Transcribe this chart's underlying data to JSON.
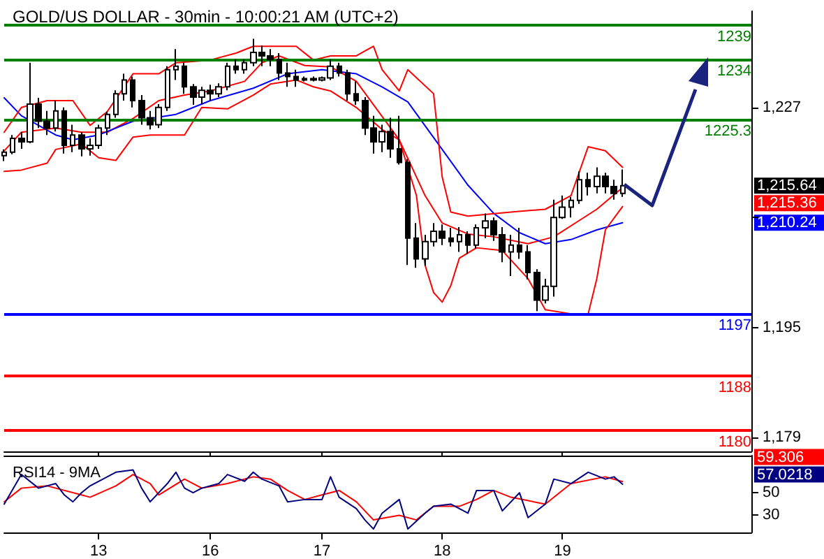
{
  "chart_data": [
    {
      "type": "candlestick",
      "title": "GOLD/US DOLLAR - 30min - 10:00:21 AM (UTC+2)",
      "tick_labels": "y",
      "categories": [
        null,
        null,
        null,
        null,
        null,
        null,
        null,
        null,
        null,
        null,
        null,
        "13",
        null,
        null,
        null,
        null,
        null,
        null,
        null,
        null,
        null,
        null,
        null,
        null,
        "16",
        null,
        null,
        null,
        null,
        null,
        null,
        null,
        null,
        null,
        null,
        null,
        null,
        "17",
        null,
        null,
        null,
        null,
        null,
        null,
        null,
        null,
        null,
        null,
        null,
        null,
        null,
        "18",
        null,
        null,
        null,
        null,
        null,
        null,
        null,
        null,
        null,
        null,
        null,
        null,
        null,
        "19",
        null,
        null,
        null,
        null,
        null,
        null,
        null,
        null,
        null,
        null,
        null,
        null,
        null,
        null,
        null,
        null,
        null,
        null,
        null,
        null,
        null,
        null
      ],
      "ylim": [
        1177,
        1241
      ],
      "yticks": [
        {
          "value": 1179,
          "label": "1,179"
        },
        {
          "value": 1195,
          "label": "1,195"
        },
        {
          "value": 1211,
          "label": null
        },
        {
          "value": 1227,
          "label": "1,227"
        }
      ],
      "series": [
        {
          "color": "#000000",
          "ohlc": [
            [
              1220.0,
              1220.9,
              1219.2,
              1220.5
            ],
            [
              1220.5,
              1223.0,
              1220.2,
              1222.5
            ],
            [
              1222.5,
              1223.4,
              1221.0,
              1222.0
            ],
            [
              1222.0,
              1233.5,
              1221.8,
              1227.5
            ],
            [
              1227.5,
              1228.4,
              1224.0,
              1225.0
            ],
            [
              1225.0,
              1226.5,
              1223.0,
              1224.0
            ],
            [
              1224.0,
              1228.0,
              1223.5,
              1226.5
            ],
            [
              1226.5,
              1227.0,
              1220.3,
              1221.5
            ],
            [
              1221.5,
              1224.5,
              1220.5,
              1223.0
            ],
            [
              1223.0,
              1223.4,
              1219.9,
              1221.0
            ],
            [
              1221.0,
              1222.5,
              1220.0,
              1221.5
            ],
            [
              1221.5,
              1224.5,
              1221.0,
              1224.0
            ],
            [
              1224.0,
              1226.4,
              1223.0,
              1226.0
            ],
            [
              1226.0,
              1229.5,
              1225.5,
              1229.0
            ],
            [
              1229.0,
              1231.9,
              1228.0,
              1231.0
            ],
            [
              1231.0,
              1231.5,
              1227.0,
              1228.0
            ],
            [
              1228.0,
              1228.8,
              1224.5,
              1225.5
            ],
            [
              1225.5,
              1226.5,
              1223.8,
              1224.5
            ],
            [
              1224.5,
              1227.5,
              1224.0,
              1227.0
            ],
            [
              1227.0,
              1233.0,
              1226.5,
              1232.5
            ],
            [
              1232.5,
              1235.5,
              1231.0,
              1233.0
            ],
            [
              1233.0,
              1233.5,
              1229.0,
              1230.0
            ],
            [
              1230.0,
              1230.4,
              1227.4,
              1228.5
            ],
            [
              1228.5,
              1230.0,
              1227.5,
              1229.5
            ],
            [
              1229.5,
              1230.3,
              1228.0,
              1229.0
            ],
            [
              1229.0,
              1230.5,
              1228.5,
              1230.0
            ],
            [
              1230.0,
              1233.5,
              1229.5,
              1233.0
            ],
            [
              1233.0,
              1234.0,
              1231.9,
              1232.5
            ],
            [
              1232.5,
              1234.0,
              1231.9,
              1233.5
            ],
            [
              1233.5,
              1237.0,
              1233.0,
              1235.0
            ],
            [
              1235.0,
              1236.0,
              1233.0,
              1234.5
            ],
            [
              1234.5,
              1235.5,
              1233.0,
              1234.0
            ],
            [
              1234.0,
              1234.9,
              1231.0,
              1232.0
            ],
            [
              1232.0,
              1233.5,
              1230.0,
              1231.5
            ],
            [
              1231.5,
              1232.5,
              1230.0,
              1231.0
            ],
            [
              1231.0,
              1231.5,
              1230.8,
              1231.2
            ],
            [
              1231.2,
              1231.5,
              1230.8,
              1231.0
            ],
            [
              1231.0,
              1231.5,
              1230.8,
              1231.3
            ],
            [
              1231.3,
              1234.0,
              1231.0,
              1233.0
            ],
            [
              1233.0,
              1233.5,
              1231.5,
              1232.0
            ],
            [
              1232.0,
              1232.5,
              1228.0,
              1229.0
            ],
            [
              1229.0,
              1230.8,
              1227.4,
              1228.0
            ],
            [
              1228.0,
              1228.5,
              1223.0,
              1224.0
            ],
            [
              1224.0,
              1225.8,
              1220.3,
              1222.0
            ],
            [
              1222.0,
              1224.5,
              1220.5,
              1223.5
            ],
            [
              1223.5,
              1225.5,
              1219.7,
              1221.0
            ],
            [
              1221.0,
              1225.8,
              1218.7,
              1219.0
            ],
            [
              1219.0,
              1219.5,
              1204.1,
              1208.0
            ],
            [
              1208.0,
              1210.2,
              1203.7,
              1205.0
            ],
            [
              1205.0,
              1208.5,
              1204.0,
              1207.5
            ],
            [
              1207.5,
              1210.2,
              1206.8,
              1209.0
            ],
            [
              1209.0,
              1210.0,
              1207.0,
              1208.0
            ],
            [
              1208.0,
              1209.5,
              1206.8,
              1207.5
            ],
            [
              1207.5,
              1209.6,
              1206.0,
              1208.5
            ],
            [
              1208.5,
              1209.0,
              1205.7,
              1207.0
            ],
            [
              1207.0,
              1210.0,
              1206.5,
              1209.5
            ],
            [
              1209.5,
              1211.6,
              1208.0,
              1210.5
            ],
            [
              1210.5,
              1211.0,
              1207.6,
              1208.5
            ],
            [
              1208.5,
              1209.6,
              1204.5,
              1206.0
            ],
            [
              1206.0,
              1208.5,
              1202.5,
              1207.0
            ],
            [
              1207.0,
              1209.5,
              1205.0,
              1206.0
            ],
            [
              1206.0,
              1207.0,
              1202.0,
              1203.0
            ],
            [
              1203.0,
              1203.5,
              1197.4,
              1199.0
            ],
            [
              1199.0,
              1202.1,
              1198.5,
              1201.0
            ],
            [
              1201.0,
              1213.6,
              1199.5,
              1211.0
            ],
            [
              1211.0,
              1214.2,
              1210.8,
              1212.5
            ],
            [
              1212.5,
              1214.0,
              1211.0,
              1213.5
            ],
            [
              1213.5,
              1217.7,
              1213.0,
              1216.5
            ],
            [
              1216.5,
              1217.5,
              1214.2,
              1215.5
            ],
            [
              1215.5,
              1218.3,
              1214.5,
              1217.0
            ],
            [
              1217.0,
              1217.5,
              1214.5,
              1215.5
            ],
            [
              1215.5,
              1216.5,
              1213.6,
              1214.5
            ],
            [
              1214.5,
              1218.0,
              1214.0,
              1215.64
            ],
            null,
            null,
            null,
            null,
            null,
            null,
            null,
            null,
            null,
            null,
            null,
            null,
            null,
            null,
            null
          ]
        },
        {
          "type": "line",
          "color": "#ff0000",
          "values": [
            1220.7,
            null,
            1223.4,
            null,
            null,
            null,
            1224.0,
            null,
            null,
            1223.4,
            null,
            null,
            1223.4,
            null,
            null,
            1225.4,
            null,
            null,
            1228.0,
            null,
            null,
            1228.8,
            null,
            null,
            1229.4,
            null,
            null,
            null,
            1230.8,
            null,
            1233.5,
            null,
            1234.5,
            null,
            null,
            1233.1,
            null,
            null,
            1232.9,
            null,
            null,
            1230.8,
            null,
            1227.4,
            null,
            null,
            1222.3,
            null,
            null,
            1214.2,
            null,
            1210.2,
            null,
            null,
            1208.6,
            null,
            null,
            1208.2,
            null,
            null,
            null,
            1207.2,
            null,
            null,
            1208.2,
            null,
            null,
            1210.6,
            null,
            1212.2,
            null,
            null,
            1215.36,
            null,
            null,
            null,
            null,
            null,
            null,
            null,
            null,
            null,
            null,
            null,
            null,
            null,
            null,
            null
          ]
        },
        {
          "type": "line",
          "color": "#0000ff",
          "values": [
            1228.4,
            null,
            1225.8,
            null,
            null,
            null,
            1223.0,
            null,
            1222.3,
            null,
            null,
            1223.0,
            null,
            null,
            null,
            1225.0,
            null,
            null,
            null,
            null,
            1226.0,
            null,
            null,
            null,
            1228.0,
            null,
            null,
            null,
            null,
            1229.8,
            null,
            null,
            null,
            1231.9,
            null,
            null,
            null,
            1232.5,
            null,
            null,
            null,
            1231.9,
            null,
            null,
            1230.0,
            null,
            null,
            1227.8,
            null,
            null,
            null,
            1220.9,
            null,
            null,
            1215.7,
            null,
            null,
            1211.6,
            null,
            null,
            1208.8,
            null,
            null,
            1207.2,
            null,
            null,
            1207.8,
            null,
            null,
            1209.2,
            null,
            null,
            1210.24,
            null,
            null,
            null,
            null,
            null,
            null,
            null,
            null,
            null,
            null,
            null,
            null,
            null,
            null,
            null
          ]
        },
        {
          "type": "line",
          "color": "#ff0000",
          "values": [
            1223.4,
            null,
            1227.0,
            null,
            null,
            1228.0,
            null,
            null,
            1228.0,
            null,
            1224.4,
            null,
            1226.4,
            null,
            null,
            1231.9,
            null,
            null,
            1231.9,
            null,
            1233.5,
            null,
            null,
            null,
            1233.9,
            null,
            null,
            1234.9,
            null,
            1235.9,
            null,
            null,
            null,
            null,
            1235.9,
            null,
            1233.9,
            null,
            1234.5,
            null,
            null,
            1234.5,
            null,
            1235.9,
            1232.5,
            null,
            1229.4,
            1232.5,
            null,
            null,
            1229.0,
            1216.9,
            1211.8,
            null,
            1211.2,
            null,
            null,
            null,
            null,
            1211.8,
            null,
            null,
            null,
            1212.2,
            null,
            null,
            1214.2,
            null,
            1221.3,
            null,
            1220.7,
            null,
            1218.3,
            null,
            null,
            null,
            null,
            null,
            null,
            null,
            null,
            null,
            null,
            null,
            null,
            null,
            null,
            null
          ]
        },
        {
          "type": "line",
          "color": "#ff0000",
          "values": [
            1217.7,
            null,
            1217.9,
            null,
            null,
            1218.9,
            1220.9,
            null,
            null,
            1221.7,
            null,
            1219.7,
            null,
            1219.3,
            null,
            1222.7,
            null,
            1223.0,
            null,
            null,
            null,
            1223.0,
            null,
            1227.0,
            null,
            null,
            1226.8,
            null,
            null,
            1228.8,
            null,
            1230.4,
            null,
            null,
            1231.0,
            null,
            1230.0,
            null,
            1229.4,
            null,
            null,
            1227.0,
            null,
            null,
            1223.8,
            null,
            1222.3,
            null,
            1214.2,
            1204.1,
            1200.1,
            1198.7,
            1201.1,
            1205.1,
            null,
            1206.6,
            null,
            null,
            1206.2,
            null,
            null,
            1202.1,
            null,
            1197.6,
            null,
            null,
            1197.0,
            null,
            1197.0,
            1202.1,
            1209.2,
            null,
            1212.6,
            null,
            null,
            null,
            null,
            null,
            null,
            null,
            null,
            null,
            null,
            null,
            null,
            null,
            null,
            null
          ]
        }
      ],
      "ref_lines": [
        {
          "axis": "y",
          "value": 1239,
          "label": "1239",
          "color": "#008000"
        },
        {
          "axis": "y",
          "value": 1234,
          "label": "1234",
          "color": "#008000"
        },
        {
          "axis": "y",
          "value": 1225.3,
          "label": "1225.3",
          "color": "#008000"
        },
        {
          "axis": "y",
          "value": 1197,
          "label": "1197",
          "color": "#0000ff"
        },
        {
          "axis": "y",
          "value": 1188,
          "label": "1188",
          "color": "#ff0000"
        },
        {
          "axis": "y",
          "value": 1180,
          "label": "1180",
          "color": "#ff0000"
        }
      ],
      "annotations": [
        "1,215.64",
        "1,215.36",
        "1,210.24"
      ]
    },
    {
      "type": "line",
      "title": "RSI14 - 9MA",
      "categories": [
        null,
        null,
        null,
        null,
        null,
        null,
        null,
        null,
        null,
        null,
        null,
        "13",
        null,
        null,
        null,
        null,
        null,
        null,
        null,
        null,
        null,
        null,
        null,
        null,
        "16",
        null,
        null,
        null,
        null,
        null,
        null,
        null,
        null,
        null,
        null,
        null,
        null,
        "17",
        null,
        null,
        null,
        null,
        null,
        null,
        null,
        null,
        null,
        null,
        null,
        null,
        null,
        "18",
        null,
        null,
        null,
        null,
        null,
        null,
        null,
        null,
        null,
        null,
        null,
        null,
        null,
        "19",
        null,
        null,
        null,
        null,
        null,
        null,
        null,
        null,
        null,
        null,
        null,
        null,
        null,
        null,
        null,
        null,
        null,
        null,
        null,
        null,
        null,
        null
      ],
      "ylim": [
        15,
        82
      ],
      "yticks": [
        30,
        50
      ],
      "series": [
        {
          "color": "#ff0000",
          "values": [
            41.7,
            null,
            53.6,
            null,
            null,
            55.6,
            null,
            null,
            null,
            47.7,
            45.7,
            null,
            null,
            55.6,
            null,
            65.5,
            null,
            57.6,
            47.7,
            null,
            null,
            61.5,
            null,
            53.6,
            null,
            null,
            57.6,
            null,
            null,
            63.5,
            null,
            61.5,
            null,
            51.6,
            null,
            43.7,
            null,
            47.7,
            null,
            51.6,
            null,
            41.7,
            null,
            25.9,
            null,
            null,
            29.9,
            null,
            25.9,
            null,
            37.8,
            null,
            null,
            37.8,
            null,
            43.7,
            null,
            51.6,
            null,
            45.7,
            null,
            null,
            null,
            39.7,
            null,
            null,
            57.6,
            null,
            null,
            null,
            63.5,
            null,
            59.306,
            null,
            null,
            null,
            null,
            null,
            null,
            null,
            null,
            null,
            null,
            null,
            null,
            null,
            null,
            null
          ]
        },
        {
          "color": "#000080",
          "values": [
            39.7,
            null,
            65.5,
            null,
            53.6,
            null,
            57.6,
            47.7,
            41.7,
            49.6,
            55.6,
            null,
            null,
            67.5,
            null,
            69.5,
            53.6,
            41.7,
            null,
            57.6,
            67.5,
            53.6,
            49.6,
            53.6,
            null,
            57.6,
            65.5,
            null,
            59.6,
            67.5,
            61.5,
            null,
            55.6,
            41.7,
            null,
            43.7,
            null,
            43.7,
            63.5,
            45.7,
            null,
            35.8,
            25.9,
            18.0,
            31.8,
            null,
            43.7,
            18.0,
            null,
            31.8,
            37.8,
            null,
            39.7,
            null,
            31.8,
            51.6,
            null,
            51.6,
            33.8,
            null,
            49.6,
            27.9,
            null,
            39.7,
            61.5,
            null,
            57.6,
            null,
            67.5,
            null,
            61.5,
            63.5,
            57.0218,
            null,
            null,
            null,
            null,
            null,
            null,
            null,
            null,
            null,
            null,
            null,
            null,
            null,
            null,
            null
          ]
        }
      ],
      "annotations": [
        "59.306",
        "57.0218"
      ]
    }
  ]
}
